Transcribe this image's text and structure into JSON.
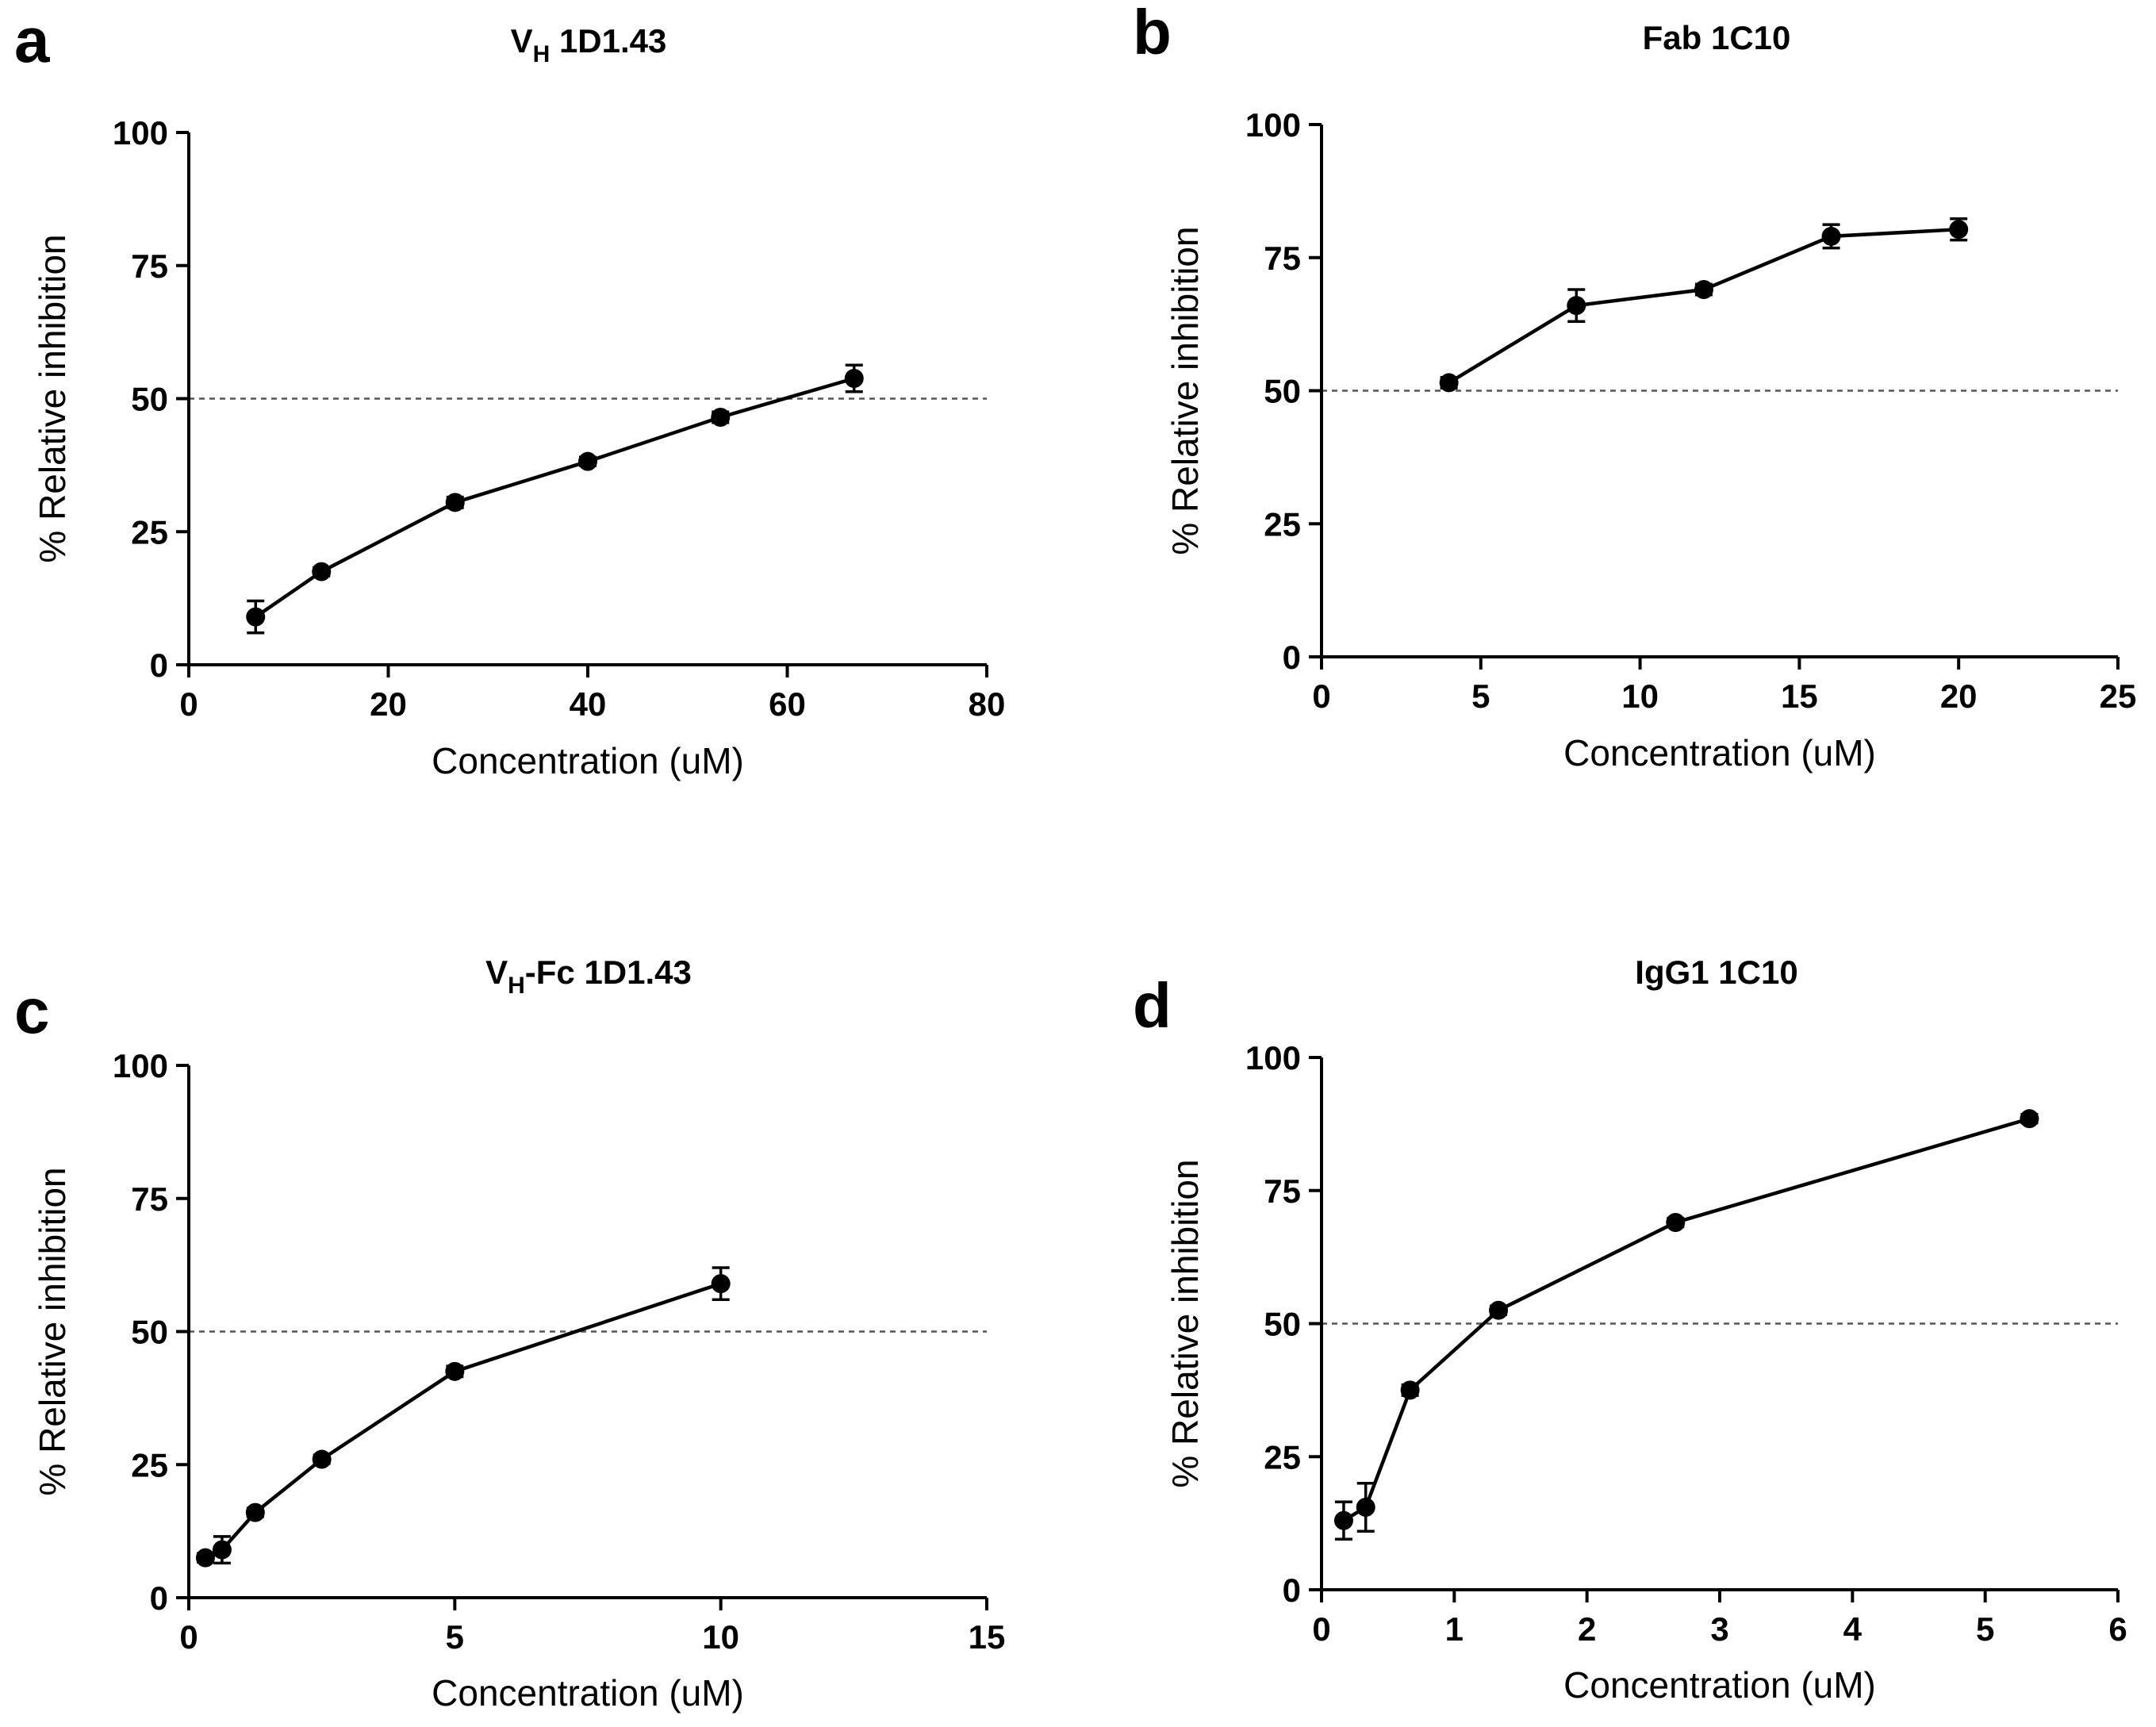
{
  "figure": {
    "axis_color": "#000000",
    "line_color": "#000000",
    "reference_color": "#555555"
  },
  "chart_data": [
    {
      "panel": "a",
      "type": "line",
      "title": "V",
      "title_sub": "H",
      "title_rest": " 1D1.43",
      "xlabel": "Concentration (uM)",
      "ylabel": "% Relative inhibition",
      "xlim": [
        0,
        80
      ],
      "ylim": [
        0,
        100
      ],
      "xticks": [
        0,
        20,
        40,
        60,
        80
      ],
      "yticks": [
        0,
        25,
        50,
        75,
        100
      ],
      "reference_line": 50,
      "series": [
        {
          "name": "V_H 1D1.43",
          "x": [
            6.7,
            13.3,
            26.7,
            40,
            53.3,
            66.7
          ],
          "y": [
            9,
            17.5,
            30.5,
            38.2,
            46.5,
            53.8
          ],
          "error": [
            3,
            0.8,
            1,
            0.8,
            1,
            2.5
          ]
        }
      ]
    },
    {
      "panel": "b",
      "type": "line",
      "title": "Fab 1C10",
      "title_sub": "",
      "title_rest": "",
      "xlabel": "Concentration (uM)",
      "ylabel": "% Relative inhibition",
      "xlim": [
        0,
        25
      ],
      "ylim": [
        0,
        100
      ],
      "xticks": [
        0,
        5,
        10,
        15,
        20,
        25
      ],
      "yticks": [
        0,
        25,
        50,
        75,
        100
      ],
      "reference_line": 50,
      "series": [
        {
          "name": "Fab 1C10",
          "x": [
            4,
            8,
            12,
            16,
            20
          ],
          "y": [
            51.5,
            66,
            69,
            79,
            80.3
          ],
          "error": [
            1,
            3,
            1,
            2.2,
            2
          ]
        }
      ]
    },
    {
      "panel": "c",
      "type": "line",
      "title": "V",
      "title_sub": "H",
      "title_rest": "-Fc 1D1.43",
      "xlabel": "Concentration (uM)",
      "ylabel": "% Relative inhibition",
      "xlim": [
        0,
        15
      ],
      "ylim": [
        0,
        100
      ],
      "xticks": [
        0,
        5,
        10,
        15
      ],
      "yticks": [
        0,
        25,
        50,
        75,
        100
      ],
      "reference_line": 50,
      "series": [
        {
          "name": "V_H-Fc 1D1.43",
          "x": [
            0.3125,
            0.625,
            1.25,
            2.5,
            5,
            10
          ],
          "y": [
            7.5,
            9,
            16,
            26,
            42.5,
            59
          ],
          "error": [
            0.8,
            2.5,
            0.8,
            0.8,
            1,
            3
          ]
        }
      ]
    },
    {
      "panel": "d",
      "type": "line",
      "title": "IgG1 1C10",
      "title_sub": "",
      "title_rest": "",
      "xlabel": "Concentration (uM)",
      "ylabel": "% Relative inhibition",
      "xlim": [
        0,
        6
      ],
      "ylim": [
        0,
        100
      ],
      "xticks": [
        0,
        1,
        2,
        3,
        4,
        5,
        6
      ],
      "yticks": [
        0,
        25,
        50,
        75,
        100
      ],
      "reference_line": 50,
      "series": [
        {
          "name": "IgG1 1C10",
          "x": [
            0.167,
            0.333,
            0.667,
            1.333,
            2.667,
            5.333
          ],
          "y": [
            13,
            15.5,
            37.5,
            52.5,
            69,
            88.5
          ],
          "error": [
            3.5,
            4.5,
            1,
            0.8,
            0.8,
            0.8
          ]
        }
      ]
    }
  ]
}
